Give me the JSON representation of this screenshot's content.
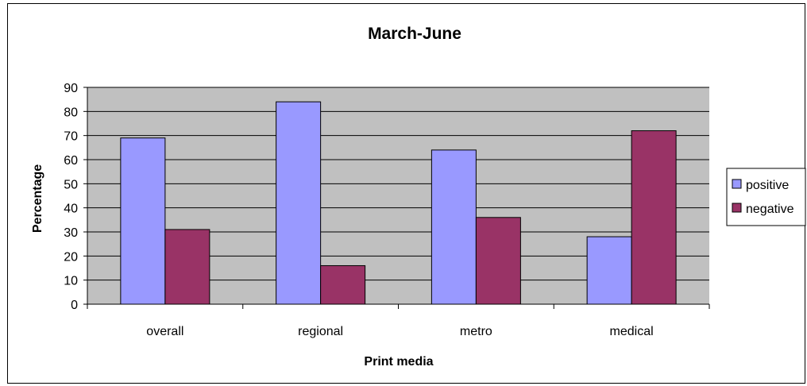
{
  "chart_data": {
    "type": "bar",
    "title": "March-June",
    "xlabel": "Print media",
    "ylabel": "Percentage",
    "categories": [
      "overall",
      "regional",
      "metro",
      "medical"
    ],
    "series": [
      {
        "name": "positive",
        "values": [
          69,
          84,
          64,
          28
        ],
        "color": "#9999ff"
      },
      {
        "name": "negative",
        "values": [
          31,
          16,
          36,
          72
        ],
        "color": "#993366"
      }
    ],
    "ylim": [
      0,
      90
    ],
    "yticks": [
      "0",
      "10",
      "20",
      "30",
      "40",
      "50",
      "60",
      "70",
      "80",
      "90"
    ],
    "grid": true,
    "legend_position": "right",
    "plot_background": "#c0c0c0"
  }
}
